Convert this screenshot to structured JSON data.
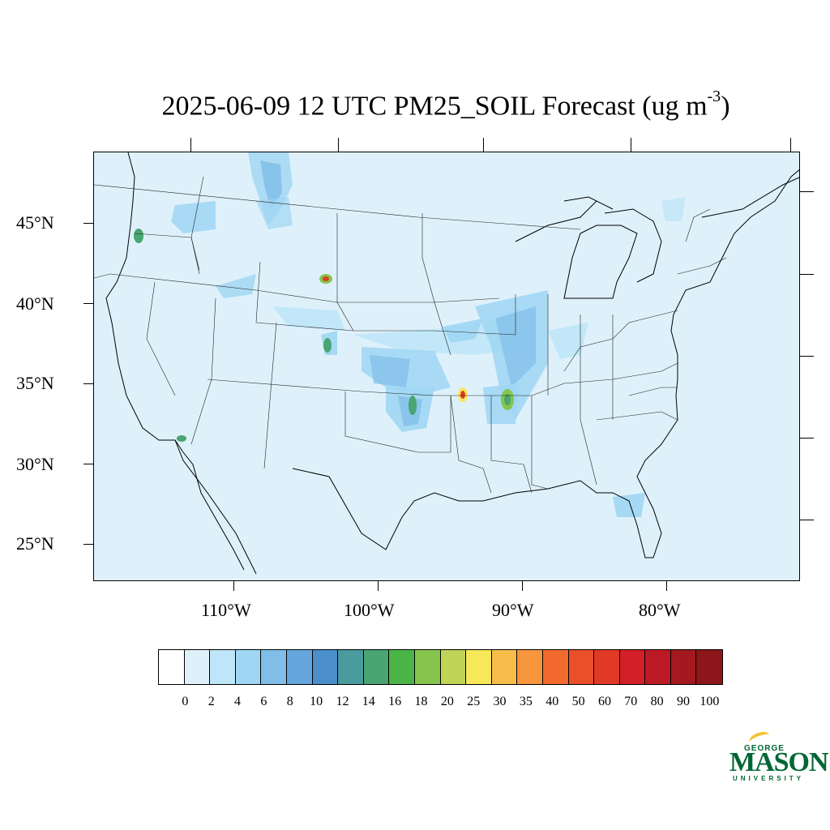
{
  "title": {
    "main": "2025-06-09 12 UTC PM25_SOIL Forecast (ug m",
    "sup": "-3",
    "close": ")"
  },
  "lat_labels": [
    "45°N",
    "40°N",
    "35°N",
    "30°N",
    "25°N"
  ],
  "lon_labels": [
    "110°W",
    "100°W",
    "90°W",
    "80°W"
  ],
  "colorbar": {
    "levels": [
      "0",
      "2",
      "4",
      "6",
      "8",
      "10",
      "12",
      "14",
      "16",
      "18",
      "20",
      "25",
      "30",
      "35",
      "40",
      "50",
      "60",
      "70",
      "80",
      "90",
      "100"
    ],
    "colors": [
      "#ffffff",
      "#def1fb",
      "#bfe6f8",
      "#9fd6f3",
      "#80bde8",
      "#65a7dc",
      "#4a8fcc",
      "#4a9b9e",
      "#49a571",
      "#4bb447",
      "#86c44d",
      "#c0d556",
      "#f7e85a",
      "#f7bd4a",
      "#f7963c",
      "#f26a2e",
      "#ea4f29",
      "#e03a27",
      "#d31f27",
      "#bc1a24",
      "#a4191f",
      "#8c161a"
    ]
  },
  "map": {
    "background_color": "#def1fb",
    "hotspot_colors": {
      "light": "#bfe6f8",
      "mid": "#9fd6f3",
      "strong": "#80bde8",
      "green": "#49a571",
      "yellow": "#f7e85a",
      "red": "#e03a27"
    }
  },
  "logo": {
    "top": "GEORGE",
    "main": "MASON",
    "bottom": "UNIVERSITY"
  }
}
